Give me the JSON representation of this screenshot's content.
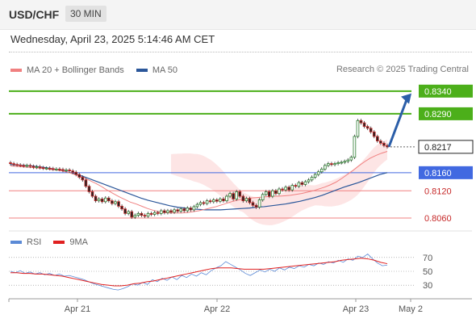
{
  "header": {
    "symbol": "USD/CHF",
    "timeframe": "30 MIN"
  },
  "datetime": "Wednesday, April 23, 2025 5:14:46 AM CET",
  "legend": {
    "ma20_label": "MA 20 + Bollinger Bands",
    "ma50_label": "MA 50",
    "ma20_color": "#f08080",
    "ma50_color": "#2b579a"
  },
  "copyright": "Research © 2025 Trading Central",
  "rsi_legend": {
    "rsi_label": "RSI",
    "ma9_label": "9MA",
    "rsi_color": "#5b8ad6",
    "ma9_color": "#e02020"
  },
  "colors": {
    "up_candle": "#2e7d32",
    "down_candle": "#c62828",
    "resistance": "#4caf1a",
    "support": "#f08080",
    "pivot": "#4169e1",
    "forecast_arrow": "#2b5ea8",
    "band_fill": "#fde2e2"
  },
  "chart_data": [
    {
      "type": "candlestick",
      "x_labels": [
        "Apr 21",
        "Apr 22",
        "Apr 23",
        "May 2"
      ],
      "ylim": [
        0.8035,
        0.837
      ],
      "current_price": 0.8217,
      "levels": [
        {
          "value": 0.834,
          "kind": "resistance",
          "label": "0.8340"
        },
        {
          "value": 0.829,
          "kind": "resistance",
          "label": "0.8290"
        },
        {
          "value": 0.816,
          "kind": "pivot",
          "label": "0.8160"
        },
        {
          "value": 0.812,
          "kind": "support",
          "label": "0.8120"
        },
        {
          "value": 0.806,
          "kind": "support",
          "label": "0.8060"
        }
      ],
      "current_label": "0.8217",
      "forecast_arrow": {
        "from": 0.8217,
        "to": 0.8335
      },
      "close": [
        0.818,
        0.8178,
        0.8177,
        0.8176,
        0.8175,
        0.8176,
        0.8174,
        0.8172,
        0.8173,
        0.8171,
        0.817,
        0.817,
        0.8169,
        0.8168,
        0.8168,
        0.8167,
        0.8165,
        0.8166,
        0.8164,
        0.8161,
        0.8156,
        0.815,
        0.8144,
        0.813,
        0.8118,
        0.8108,
        0.8098,
        0.8102,
        0.8096,
        0.8104,
        0.8098,
        0.8092,
        0.8096,
        0.8086,
        0.808,
        0.807,
        0.8074,
        0.8062,
        0.8066,
        0.807,
        0.8066,
        0.8064,
        0.807,
        0.8068,
        0.8072,
        0.807,
        0.8076,
        0.8072,
        0.8076,
        0.8073,
        0.8078,
        0.8075,
        0.808,
        0.8076,
        0.8082,
        0.8078,
        0.8085,
        0.809,
        0.8094,
        0.8092,
        0.8098,
        0.8096,
        0.81,
        0.8097,
        0.8102,
        0.8098,
        0.8108,
        0.8114,
        0.8102,
        0.8118,
        0.8108,
        0.8098,
        0.8103,
        0.8094,
        0.8088,
        0.8084,
        0.81,
        0.8112,
        0.8118,
        0.8108,
        0.812,
        0.8114,
        0.8124,
        0.8122,
        0.8128,
        0.8122,
        0.8132,
        0.813,
        0.8138,
        0.8134,
        0.814,
        0.8144,
        0.815,
        0.8156,
        0.8162,
        0.8168,
        0.8176,
        0.818,
        0.8178,
        0.818,
        0.8182,
        0.8183,
        0.8185,
        0.8188,
        0.8194,
        0.824,
        0.8275,
        0.827,
        0.8262,
        0.8258,
        0.825,
        0.824,
        0.823,
        0.8225,
        0.822,
        0.8217
      ],
      "ma20": [
        0.8175,
        0.8174,
        0.8173,
        0.8172,
        0.8171,
        0.817,
        0.8169,
        0.8167,
        0.8166,
        0.8164,
        0.8161,
        0.8157,
        0.8153,
        0.8148,
        0.8142,
        0.8136,
        0.8129,
        0.8121,
        0.8114,
        0.8107,
        0.8101,
        0.8095,
        0.8091,
        0.8086,
        0.8081,
        0.8077,
        0.8074,
        0.8072,
        0.8071,
        0.8071,
        0.8071,
        0.8072,
        0.8074,
        0.8076,
        0.8079,
        0.8082,
        0.8085,
        0.8089,
        0.8093,
        0.8097,
        0.81,
        0.8102,
        0.8104,
        0.8105,
        0.8106,
        0.8107,
        0.8108,
        0.8108,
        0.8109,
        0.811,
        0.8112,
        0.8114,
        0.8117,
        0.812,
        0.8124,
        0.8128,
        0.8133,
        0.8139,
        0.8147,
        0.8156,
        0.8165,
        0.8175,
        0.8184,
        0.8192,
        0.8198,
        0.8203,
        0.8207
      ],
      "ma50": [
        0.8178,
        0.8177,
        0.8176,
        0.8175,
        0.8173,
        0.8171,
        0.8168,
        0.8165,
        0.8161,
        0.8157,
        0.8152,
        0.8146,
        0.814,
        0.8134,
        0.8128,
        0.8122,
        0.8116,
        0.811,
        0.8104,
        0.8099,
        0.8095,
        0.8091,
        0.8087,
        0.8084,
        0.8082,
        0.808,
        0.8079,
        0.8078,
        0.8078,
        0.8078,
        0.8079,
        0.808,
        0.8081,
        0.8082,
        0.8084,
        0.8085,
        0.8087,
        0.8089,
        0.8091,
        0.8094,
        0.8097,
        0.8101,
        0.8105,
        0.811,
        0.8116,
        0.8122,
        0.8128,
        0.8133,
        0.8138,
        0.8144,
        0.815,
        0.8156,
        0.816
      ],
      "rsi_ticks": [
        70,
        50,
        30
      ],
      "rsi_ylim": [
        15,
        85
      ],
      "rsi": [
        50,
        48,
        51,
        47,
        49,
        46,
        48,
        45,
        47,
        44,
        46,
        43,
        44,
        42,
        40,
        38,
        35,
        32,
        30,
        28,
        26,
        24,
        23,
        25,
        28,
        32,
        30,
        34,
        31,
        38,
        35,
        40,
        37,
        42,
        38,
        44,
        41,
        46,
        43,
        48,
        45,
        51,
        55,
        58,
        64,
        60,
        56,
        52,
        47,
        44,
        48,
        52,
        49,
        53,
        50,
        55,
        52,
        56,
        54,
        58,
        56,
        60,
        58,
        62,
        60,
        64,
        62,
        66,
        63,
        68,
        66,
        72,
        70,
        75,
        68,
        62,
        58,
        59
      ],
      "rsi_ma9": [
        48,
        48,
        47,
        47,
        46,
        46,
        45,
        44,
        43,
        41,
        39,
        37,
        35,
        33,
        31,
        30,
        29,
        29,
        30,
        32,
        33,
        35,
        36,
        38,
        40,
        42,
        44,
        46,
        48,
        50,
        52,
        54,
        55,
        55,
        55,
        54,
        53,
        53,
        53,
        53,
        54,
        55,
        56,
        57,
        58,
        59,
        60,
        61,
        62,
        63,
        64,
        66,
        67,
        68,
        69,
        68,
        66,
        63,
        61
      ]
    }
  ]
}
